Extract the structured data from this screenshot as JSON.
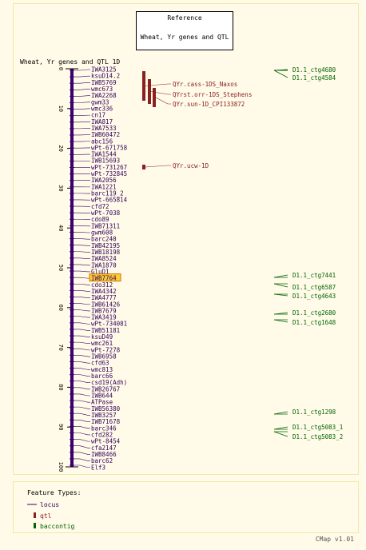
{
  "colors": {
    "background": "#fffbe8",
    "frame": "#eee9a8",
    "locus": "#3a006e",
    "locus_label": "#33005c",
    "highlight_fill": "#ffcc33",
    "qtl": "#8b2020",
    "baccontig": "#006400",
    "axis": "#000000"
  },
  "reference_box": {
    "heading": "Reference",
    "map_name": "Wheat, Yr genes and QTL"
  },
  "map_title": "Wheat, Yr genes and QTL 1D",
  "ruler_ticks": [
    "0",
    "10",
    "20",
    "30",
    "40",
    "50",
    "60",
    "70",
    "80",
    "90",
    "100"
  ],
  "loci": [
    "IWA3125",
    "ksuD14.2",
    "IWB5769",
    "wmc673",
    "IWA2268",
    "gwm33",
    "wmc336",
    "cn17",
    "IWA817",
    "IWA7533",
    "IWB60472",
    "abc156",
    "wPt-671758",
    "IWA1544",
    "IWB15693",
    "wPt-731267",
    "wPt-732845",
    "IWA2056",
    "IWA1221",
    "barc119_2",
    "wPt-665814",
    "cfd72",
    "wPt-7038",
    "cdo89",
    "IWB71311",
    "gwm608",
    "barc240",
    "IWB42195",
    "IWB18198",
    "IWA8524",
    "IWA1870",
    "GluD1",
    "IWB7764",
    "cdo312",
    "IWA4342",
    "IWA4777",
    "IWB61426",
    "IWB7679",
    "IWA3419",
    "wPt-734081",
    "IWB51181",
    "ksuD49",
    "wmc261",
    "wPt-7278",
    "IWB6958",
    "cfd63",
    "wmc813",
    "barc66",
    "csd19(Adh)",
    "IWB26767",
    "IWB644",
    "ATPase",
    "IWB56380",
    "IWB3257",
    "IWB71678",
    "barc346",
    "cfd282",
    "wPt-8454",
    "cfa2147",
    "IWB8466",
    "barc62",
    "Elf3"
  ],
  "highlighted_locus": "IWB7764",
  "qtls": [
    {
      "label": "QYr.cass-1DS_Naxos"
    },
    {
      "label": "QYrst.orr-1DS_Stephens"
    },
    {
      "label": "QYr.sun-1D_CPI133872"
    },
    {
      "label": "QYr.ucw-1D"
    }
  ],
  "baccontigs": [
    "D1.1_ctg4680",
    "D1.1_ctg4584",
    "D1.1_ctg7441",
    "D1.1_ctg6587",
    "D1.1_ctg4643",
    "D1.1_ctg2680",
    "D1.1_ctg1648",
    "D1.1_ctg1298",
    "D1.1_ctg5083_1",
    "D1.1_ctg5083_2"
  ],
  "legend": {
    "title": "Feature Types:",
    "items": [
      {
        "label": "locus",
        "icon": "line-icon"
      },
      {
        "label": "qtl",
        "icon": "bar-icon"
      },
      {
        "label": "baccontig",
        "icon": "bar-icon"
      }
    ]
  },
  "footer": "CMap v1.01"
}
